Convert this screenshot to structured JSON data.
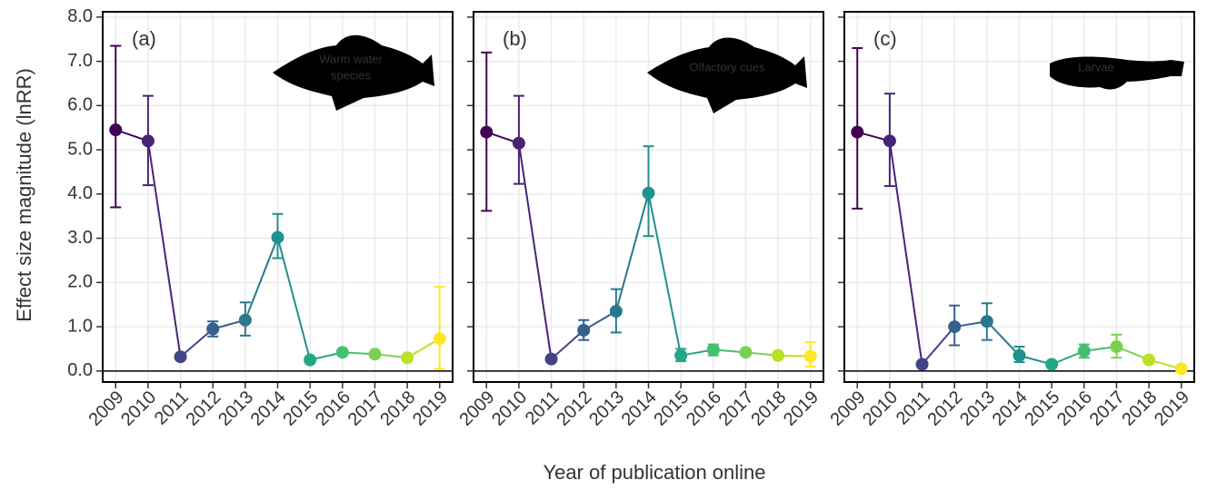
{
  "ylabel": "Effect size magnitude (lnRR)",
  "xlabel": "Year of publication online",
  "chart_data": [
    {
      "type": "line",
      "label": "(a)",
      "annotation": [
        "Warm water",
        "species"
      ],
      "x": [
        2009,
        2010,
        2011,
        2012,
        2013,
        2014,
        2015,
        2016,
        2017,
        2018,
        2019
      ],
      "values": [
        5.45,
        5.2,
        0.32,
        0.95,
        1.15,
        3.02,
        0.25,
        0.42,
        0.38,
        0.3,
        0.73
      ],
      "lower": [
        3.7,
        4.2,
        0.28,
        0.78,
        0.8,
        2.55,
        0.2,
        0.37,
        0.33,
        0.25,
        0.05
      ],
      "upper": [
        7.35,
        6.22,
        0.36,
        1.12,
        1.55,
        3.55,
        0.3,
        0.47,
        0.43,
        0.35,
        1.9
      ],
      "colors": [
        "#440154",
        "#482475",
        "#414487",
        "#355f8d",
        "#2a788e",
        "#21918c",
        "#22a884",
        "#44bf70",
        "#7ad151",
        "#bddf26",
        "#fde725"
      ],
      "hline": 0,
      "xlim": [
        2008.6,
        2019.4
      ],
      "ylim": [
        -0.25,
        8.12
      ],
      "yticks": [
        {
          "value": 0,
          "label": "0.0"
        },
        {
          "value": 1,
          "label": "1.0"
        },
        {
          "value": 2,
          "label": "2.0"
        },
        {
          "value": 3,
          "label": "3.0"
        },
        {
          "value": 4,
          "label": "4.0"
        },
        {
          "value": 5,
          "label": "5.0"
        },
        {
          "value": 6,
          "label": "6.0"
        },
        {
          "value": 7,
          "label": "7.0"
        },
        {
          "value": 8,
          "label": "8.0"
        }
      ],
      "grid": true
    },
    {
      "type": "line",
      "label": "(b)",
      "annotation": [
        "Olfactory cues"
      ],
      "x": [
        2009,
        2010,
        2011,
        2012,
        2013,
        2014,
        2015,
        2016,
        2017,
        2018,
        2019
      ],
      "values": [
        5.4,
        5.15,
        0.27,
        0.92,
        1.35,
        4.02,
        0.35,
        0.48,
        0.42,
        0.35,
        0.33
      ],
      "lower": [
        3.62,
        4.23,
        0.23,
        0.7,
        0.87,
        3.05,
        0.22,
        0.35,
        0.37,
        0.3,
        0.1
      ],
      "upper": [
        7.2,
        6.22,
        0.31,
        1.15,
        1.85,
        5.08,
        0.5,
        0.6,
        0.47,
        0.4,
        0.65
      ],
      "colors": [
        "#440154",
        "#482475",
        "#414487",
        "#355f8d",
        "#2a788e",
        "#21918c",
        "#22a884",
        "#44bf70",
        "#7ad151",
        "#bddf26",
        "#fde725"
      ],
      "hline": 0,
      "xlim": [
        2008.6,
        2019.4
      ],
      "ylim": [
        -0.25,
        8.12
      ],
      "yticks": [
        {
          "value": 0,
          "label": "0.0"
        },
        {
          "value": 1,
          "label": "1.0"
        },
        {
          "value": 2,
          "label": "2.0"
        },
        {
          "value": 3,
          "label": "3.0"
        },
        {
          "value": 4,
          "label": "4.0"
        },
        {
          "value": 5,
          "label": "5.0"
        },
        {
          "value": 6,
          "label": "6.0"
        },
        {
          "value": 7,
          "label": "7.0"
        },
        {
          "value": 8,
          "label": "8.0"
        }
      ],
      "grid": true
    },
    {
      "type": "line",
      "label": "(c)",
      "annotation": [
        "Larvae"
      ],
      "x": [
        2009,
        2010,
        2011,
        2012,
        2013,
        2014,
        2015,
        2016,
        2017,
        2018,
        2019
      ],
      "values": [
        5.4,
        5.2,
        0.15,
        1.0,
        1.12,
        0.35,
        0.15,
        0.45,
        0.55,
        0.25,
        0.05
      ],
      "lower": [
        3.67,
        4.18,
        0.1,
        0.58,
        0.7,
        0.2,
        0.1,
        0.3,
        0.3,
        0.2,
        0.02
      ],
      "upper": [
        7.3,
        6.27,
        0.2,
        1.48,
        1.53,
        0.55,
        0.2,
        0.6,
        0.82,
        0.3,
        0.08
      ],
      "colors": [
        "#440154",
        "#482475",
        "#414487",
        "#355f8d",
        "#2a788e",
        "#21918c",
        "#22a884",
        "#44bf70",
        "#7ad151",
        "#bddf26",
        "#fde725"
      ],
      "hline": 0,
      "xlim": [
        2008.6,
        2019.4
      ],
      "ylim": [
        -0.25,
        8.12
      ],
      "yticks": [
        {
          "value": 0,
          "label": "0.0"
        },
        {
          "value": 1,
          "label": "1.0"
        },
        {
          "value": 2,
          "label": "2.0"
        },
        {
          "value": 3,
          "label": "3.0"
        },
        {
          "value": 4,
          "label": "4.0"
        },
        {
          "value": 5,
          "label": "5.0"
        },
        {
          "value": 6,
          "label": "6.0"
        },
        {
          "value": 7,
          "label": "7.0"
        },
        {
          "value": 8,
          "label": "8.0"
        }
      ],
      "grid": true
    }
  ]
}
